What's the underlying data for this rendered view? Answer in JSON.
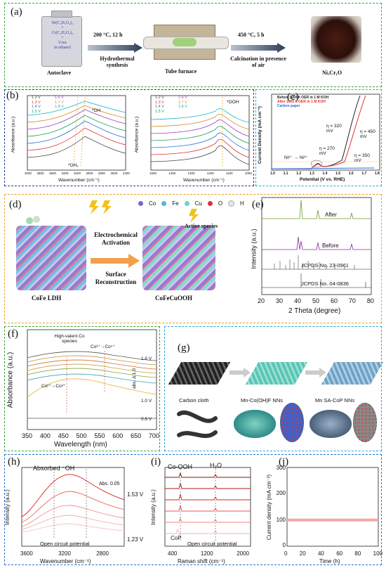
{
  "panel_a": {
    "label": "(a)",
    "autoclave_lines": [
      "Ni(C₂H₃O₂)₂",
      "+",
      "Cr(C₂H₃O₂)₃",
      "+",
      "Urea",
      "in ethanol"
    ],
    "autoclave_caption": "Autoclave",
    "step1_top": "200 °C, 12 h",
    "step1_bottom": "Hydrothermal synthesis",
    "furnace_caption": "Tube furnace",
    "step2_top": "450 °C, 5 h",
    "step2_bottom": "Calcination in presence of air",
    "product": "NiₓCrᵧO"
  },
  "panel_b": {
    "label": "(b)",
    "left": {
      "legend": [
        "1.2 V",
        "1.3 V",
        "1.4 V",
        "1.5 V",
        "1.6 V",
        "1.7 V",
        "1.8 V"
      ],
      "ylabel": "Absorbance (a.u.)",
      "xlabel": "Wavenumber (cm⁻¹)",
      "ticks": [
        "4000",
        "3800",
        "3600",
        "3400",
        "3200",
        "3000",
        "2800",
        "2600",
        "2400"
      ],
      "ann1": "*OH",
      "ann2": "*OH₂"
    },
    "right": {
      "legend": [
        "1.2 V",
        "1.3 V",
        "1.4 V",
        "1.5 V",
        "1.6 V",
        "1.7 V",
        "1.8 V"
      ],
      "ylabel": "Absorbance (a.u.)",
      "xlabel": "Wavenumber (cm⁻¹)",
      "ticks": [
        "1500",
        "1400",
        "1300",
        "1200",
        "1100",
        "1000"
      ],
      "ann1": "*OOH"
    }
  },
  "panel_c": {
    "label": "(c)",
    "legend": [
      "Before 1000 h OER in 1 M KOH",
      "After 1000 h OER in 1 M KOH",
      "Carbon paper"
    ],
    "ylabel": "Current Density (mA cm⁻²)",
    "xlabel": "Potential (V vs. RHE)",
    "ticks": [
      "1.0",
      "1.1",
      "1.2",
      "1.3",
      "1.4",
      "1.5",
      "1.6",
      "1.7",
      "1.8"
    ],
    "ann": [
      "η = 320 mV",
      "η = 450 mV",
      "η = 270 mV",
      "η = 350 mV",
      "Ni²⁺ → Ni³⁺"
    ]
  },
  "panel_d": {
    "label": "(d)",
    "legend": [
      "Co",
      "Fe",
      "Cu",
      "O",
      "H"
    ],
    "center_top": "Electrochemical Activation",
    "center_bottom": "Surface Reconstruction",
    "active": "Active species",
    "left_caption": "CoFe LDH",
    "right_caption": "CoFeCuOOH"
  },
  "panel_e": {
    "label": "(e)",
    "after": "After",
    "before": "Before",
    "ref1": "JCPDS No. 23-0961",
    "ref2": "JCPDS No. 04-0836",
    "ylabel": "Intensity (a.u.)",
    "xlabel": "2 Theta (degree)",
    "ticks": [
      "20",
      "30",
      "40",
      "50",
      "60",
      "70",
      "80"
    ]
  },
  "panel_f": {
    "label": "(f)",
    "ann_high": "High-valent Co species",
    "ann_co34": "Co³⁺→Co⁴⁺",
    "ann_co23": "Co²⁺→Co³⁺",
    "v_top": "1.6 V",
    "v_mid": "1.0 V",
    "v_bot": "0.6 V",
    "scale": "abs. Δ 1.0",
    "ylabel": "Absorbance (a.u.)",
    "xlabel": "Wavelength (nm)",
    "ticks": [
      "350",
      "400",
      "450",
      "500",
      "550",
      "600",
      "650",
      "700"
    ]
  },
  "panel_g": {
    "label": "(g)",
    "cap1": "Carbon cloth",
    "cap2": "Mn-Co(OH)F NNs",
    "cap3": "Mn SA-CoP NNs"
  },
  "panel_h": {
    "label": "(h)",
    "ann": "Absorbed ⁻OH",
    "scale": "Abs. 0.05",
    "v_top": "1.53 V",
    "v_bot": "1.23 V",
    "ocp": "Open circuit potential",
    "ylabel": "Intensity (a.u.)",
    "xlabel": "Wavenumber (cm⁻¹)",
    "ticks": [
      "3600",
      "3200",
      "2800"
    ]
  },
  "panel_i": {
    "label": "(i)",
    "ann1": "Co-OOH",
    "ann2": "H₂O",
    "ann3": "CoP",
    "ocp": "Open circuit potential",
    "ylabel": "Intensity (a.u.)",
    "xlabel": "Raman shift (cm⁻¹)",
    "ticks": [
      "400",
      "1200",
      "2000"
    ]
  },
  "panel_j": {
    "label": "(j)",
    "ylabel": "Current density (mA cm⁻²)",
    "xlabel": "Time (h)",
    "yticks": [
      "0",
      "100",
      "200",
      "300"
    ],
    "xticks": [
      "0",
      "20",
      "40",
      "60",
      "80",
      "100"
    ]
  },
  "chart_data": [
    {
      "type": "line",
      "panel": "j",
      "x": [
        0,
        20,
        40,
        60,
        80,
        100
      ],
      "values": [
        100,
        100,
        100,
        100,
        100,
        100
      ],
      "xlabel": "Time (h)",
      "ylabel": "Current density (mA cm⁻²)",
      "xlim": [
        0,
        100
      ],
      "ylim": [
        0,
        300
      ]
    },
    {
      "type": "line",
      "panel": "c",
      "x": [
        1.0,
        1.2,
        1.3,
        1.4,
        1.5,
        1.6,
        1.7,
        1.8
      ],
      "series": [
        {
          "name": "Before 1000 h OER in 1 M KOH",
          "values": [
            0,
            5,
            25,
            15,
            60,
            400,
            900,
            1000
          ]
        },
        {
          "name": "After 1000 h OER in 1 M KOH",
          "values": [
            0,
            5,
            20,
            20,
            40,
            300,
            800,
            1000
          ]
        },
        {
          "name": "Carbon paper",
          "values": [
            0,
            0,
            0,
            0,
            2,
            5,
            10,
            20
          ]
        }
      ],
      "xlabel": "Potential (V vs. RHE)",
      "xlim": [
        1.0,
        1.8
      ]
    }
  ],
  "colors": {
    "green": "#3aa33a",
    "blue": "#2b6fd1",
    "orange": "#e8a21c",
    "cyan": "#2aa7d8",
    "red": "#e0322b"
  }
}
